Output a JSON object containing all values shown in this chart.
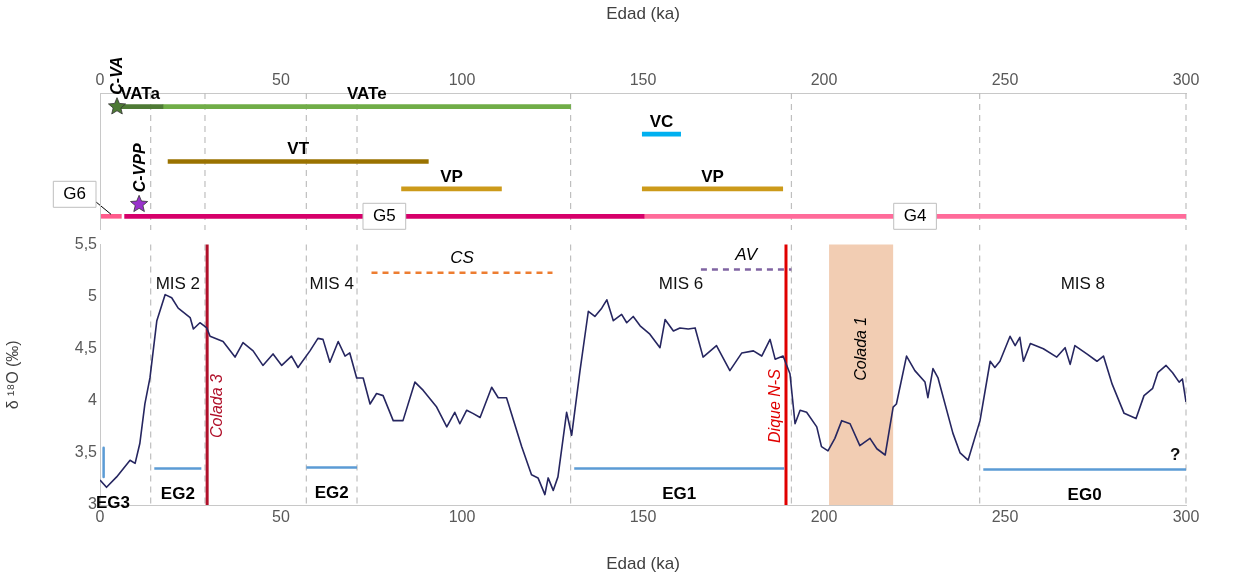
{
  "chart_data": [
    {
      "type": "bar",
      "orientation": "horizontal",
      "categories": [
        null,
        null,
        null,
        null,
        null
      ],
      "xlabel": "Edad (ka)",
      "xlim": [
        0,
        300
      ],
      "xticks": [
        0,
        50,
        100,
        150,
        200,
        250,
        300
      ],
      "tick_labels": "x",
      "grid": false,
      "legend": false,
      "series": [
        {
          "name": "VATa",
          "color": "#4e7a35",
          "base": [
            4.7,
            null,
            null,
            null,
            null
          ],
          "values": [
            12.7,
            null,
            null,
            null,
            null
          ]
        },
        {
          "name": "VATe",
          "color": "#70ad47",
          "base": [
            17.4,
            null,
            null,
            null,
            null
          ],
          "values": [
            112.6,
            null,
            null,
            null,
            null
          ]
        },
        {
          "name": "VC",
          "color": "#00b0f0",
          "base": [
            null,
            149.8,
            null,
            null,
            null
          ],
          "values": [
            null,
            10.6,
            null,
            null,
            null
          ]
        },
        {
          "name": "VT",
          "color": "#9a7200",
          "base": [
            null,
            null,
            18.8,
            null,
            null
          ],
          "values": [
            null,
            null,
            71.9,
            null,
            null
          ]
        },
        {
          "name": "VP",
          "color": "#cc9a1a",
          "base": [
            null,
            null,
            null,
            83.3,
            null
          ],
          "values": [
            null,
            null,
            null,
            27.6,
            null
          ]
        },
        {
          "name": "VP",
          "color": "#cc9a1a",
          "base": [
            null,
            null,
            null,
            149.8,
            null
          ],
          "values": [
            null,
            null,
            null,
            38.8,
            null
          ]
        },
        {
          "name": "G6",
          "color": "#ff5b8c",
          "base": [
            null,
            null,
            null,
            null,
            0.2
          ],
          "values": [
            null,
            null,
            null,
            null,
            5.7
          ]
        },
        {
          "name": "G5",
          "color": "#d6006a",
          "base": [
            null,
            null,
            null,
            null,
            6.8
          ],
          "values": [
            null,
            null,
            null,
            null,
            143.5
          ]
        },
        {
          "name": "G4",
          "color": "#ff6b9a",
          "base": [
            null,
            null,
            null,
            null,
            150.3
          ],
          "values": [
            null,
            null,
            null,
            null,
            149.7
          ]
        },
        {
          "type": "scatter",
          "marker": "star",
          "name": "C-VA",
          "color": "#4e7a35",
          "values": [
            4.7,
            null,
            null,
            null,
            null
          ]
        },
        {
          "type": "scatter",
          "marker": "star",
          "name": "C-VPP",
          "color": "#9933cc",
          "values": [
            null,
            null,
            null,
            null,
            10.8
          ]
        }
      ],
      "ref_lines": [
        {
          "axis": "x",
          "value": 14,
          "color": "#bfbfbf",
          "line_style": "dashed"
        },
        {
          "axis": "x",
          "value": 29,
          "color": "#bfbfbf",
          "line_style": "dashed"
        },
        {
          "axis": "x",
          "value": 57,
          "color": "#bfbfbf",
          "line_style": "dashed"
        },
        {
          "axis": "x",
          "value": 71,
          "color": "#bfbfbf",
          "line_style": "dashed"
        },
        {
          "axis": "x",
          "value": 130,
          "color": "#bfbfbf",
          "line_style": "dashed"
        },
        {
          "axis": "x",
          "value": 191,
          "color": "#bfbfbf",
          "line_style": "dashed"
        },
        {
          "axis": "x",
          "value": 243,
          "color": "#bfbfbf",
          "line_style": "dashed"
        },
        {
          "axis": "x",
          "value": 300,
          "color": "#bfbfbf",
          "line_style": "dashed"
        }
      ]
    },
    {
      "type": "line",
      "xlabel": "Edad (ka)",
      "ylabel": "δ ¹⁸O (‰)",
      "xlim": [
        0,
        300
      ],
      "xticks": [
        0,
        50,
        100,
        150,
        200,
        250,
        300
      ],
      "ylim": [
        3,
        5.5
      ],
      "yticks": [
        3,
        {
          "value": 3.5,
          "label": "3,5"
        },
        4,
        {
          "value": 4.5,
          "label": "4,5"
        },
        5,
        {
          "value": 5.5,
          "label": "5,5"
        }
      ],
      "grid": false,
      "legend": false,
      "marker": "none",
      "series": [
        {
          "color": "#262660",
          "x": [
            0,
            1.8,
            4.6,
            8.3,
            9.7,
            11,
            12.4,
            13.8,
            15.7,
            18,
            19.8,
            21.6,
            24.9,
            25.8,
            27.6,
            29.5,
            30.4,
            34,
            37.3,
            39.5,
            42.3,
            45,
            47.8,
            50.2,
            52.9,
            54.7,
            58,
            60.2,
            61.6,
            63.5,
            65.8,
            67.7,
            69,
            70.9,
            72.7,
            74.6,
            76.4,
            78.2,
            81,
            83.7,
            87,
            89.3,
            93,
            95.8,
            98,
            99.4,
            101.3,
            103,
            105,
            108.2,
            110,
            112.3,
            116.5,
            119.2,
            121,
            122.9,
            123.8,
            125.2,
            126.5,
            128.9,
            130.3,
            132.6,
            134.9,
            136.7,
            138.6,
            140,
            141.8,
            144.1,
            145.5,
            147.3,
            149.2,
            151.9,
            154.7,
            156.1,
            158.4,
            160.2,
            162.5,
            164.4,
            166.6,
            170.3,
            174,
            177.3,
            180.5,
            182.8,
            185.1,
            186.5,
            188.7,
            190.6,
            192,
            193.4,
            195.2,
            198,
            199.3,
            201.1,
            203,
            204.9,
            207.2,
            209.9,
            212.7,
            214.6,
            216.9,
            219.1,
            220,
            222.8,
            225.1,
            227.9,
            228.7,
            230.1,
            231.5,
            235.6,
            237.6,
            239.8,
            243.1,
            245.9,
            247.2,
            248.6,
            251.4,
            252.8,
            254.1,
            255.1,
            257,
            260.6,
            264.3,
            266.6,
            268,
            269.3,
            272.6,
            275.4,
            277.2,
            279.6,
            282.9,
            286.2,
            288.4,
            290.8,
            292.2,
            294.5,
            296.3,
            298.1,
            299,
            300
          ],
          "values": [
            3.24,
            3.17,
            3.27,
            3.43,
            3.4,
            3.59,
            3.97,
            4.22,
            4.77,
            5.02,
            4.99,
            4.89,
            4.8,
            4.69,
            4.75,
            4.7,
            4.62,
            4.57,
            4.42,
            4.56,
            4.48,
            4.34,
            4.45,
            4.34,
            4.43,
            4.32,
            4.48,
            4.6,
            4.59,
            4.37,
            4.57,
            4.43,
            4.46,
            4.22,
            4.22,
            3.97,
            4.07,
            4.05,
            3.81,
            3.81,
            4.18,
            4.1,
            3.94,
            3.75,
            3.89,
            3.78,
            3.91,
            3.88,
            3.84,
            4.13,
            4.03,
            4.03,
            3.56,
            3.29,
            3.26,
            3.1,
            3.26,
            3.14,
            3.27,
            3.89,
            3.67,
            4.29,
            4.86,
            4.81,
            4.89,
            4.97,
            4.77,
            4.83,
            4.75,
            4.81,
            4.72,
            4.64,
            4.51,
            4.78,
            4.67,
            4.7,
            4.69,
            4.7,
            4.42,
            4.53,
            4.29,
            4.46,
            4.48,
            4.43,
            4.59,
            4.4,
            4.43,
            4.26,
            3.78,
            3.91,
            3.89,
            3.75,
            3.56,
            3.52,
            3.64,
            3.81,
            3.78,
            3.57,
            3.64,
            3.54,
            3.48,
            3.94,
            3.97,
            4.43,
            4.29,
            4.18,
            4.03,
            4.31,
            4.22,
            3.69,
            3.5,
            3.43,
            3.81,
            4.38,
            4.32,
            4.38,
            4.62,
            4.53,
            4.61,
            4.38,
            4.55,
            4.5,
            4.42,
            4.51,
            4.35,
            4.53,
            4.45,
            4.38,
            4.43,
            4.16,
            3.88,
            3.83,
            4.05,
            4.12,
            4.27,
            4.34,
            4.27,
            4.18,
            4.21,
            3.99
          ]
        },
        {
          "name": "EG3",
          "color": "#5b9bd5",
          "x": [
            1,
            1
          ],
          "values": [
            3.55,
            3.27
          ]
        },
        {
          "name": "EG2",
          "color": "#5b9bd5",
          "x": [
            15,
            28
          ],
          "values": [
            3.35,
            3.35
          ]
        },
        {
          "name": "EG2",
          "color": "#5b9bd5",
          "x": [
            57,
            71
          ],
          "values": [
            3.36,
            3.36
          ]
        },
        {
          "name": "EG1",
          "color": "#5b9bd5",
          "x": [
            131,
            189
          ],
          "values": [
            3.35,
            3.35
          ]
        },
        {
          "name": "EG0",
          "color": "#5b9bd5",
          "x": [
            244,
            300
          ],
          "values": [
            3.34,
            3.34
          ]
        },
        {
          "name": "CS",
          "color": "#ed7d31",
          "line_style": "dashed",
          "x": [
            75,
            125
          ],
          "values": [
            5.23,
            5.23
          ]
        },
        {
          "name": "AV",
          "color": "#8064a2",
          "line_style": "dashed",
          "x": [
            166,
            191
          ],
          "values": [
            5.26,
            5.26
          ]
        }
      ],
      "ref_lines": [
        {
          "axis": "x",
          "value": 14,
          "color": "#bfbfbf",
          "line_style": "dashed"
        },
        {
          "axis": "x",
          "value": 29,
          "color": "#bfbfbf",
          "line_style": "dashed"
        },
        {
          "axis": "x",
          "value": 57,
          "color": "#bfbfbf",
          "line_style": "dashed"
        },
        {
          "axis": "x",
          "value": 71,
          "color": "#bfbfbf",
          "line_style": "dashed"
        },
        {
          "axis": "x",
          "value": 130,
          "color": "#bfbfbf",
          "line_style": "dashed"
        },
        {
          "axis": "x",
          "value": 191,
          "color": "#bfbfbf",
          "line_style": "dashed"
        },
        {
          "axis": "x",
          "value": 243,
          "color": "#bfbfbf",
          "line_style": "dashed"
        },
        {
          "axis": "x",
          "value": 300,
          "color": "#bfbfbf",
          "line_style": "dashed"
        },
        {
          "axis": "x",
          "value": 29.6,
          "label": "Colada 3",
          "color": "#b0102a"
        },
        {
          "axis": "x",
          "value": 189.5,
          "label": "Dique N-S",
          "color": "#e00000"
        }
      ],
      "bands": [
        {
          "axis": "x",
          "from": 201.4,
          "to": 219.1,
          "label": "Colada 1",
          "color": "#f2cdb3"
        }
      ],
      "annotations": [
        "MIS 2",
        "MIS 4",
        "MIS 6",
        "MIS 8",
        {
          "text": "?",
          "x": 300,
          "y": 3.34
        }
      ]
    }
  ]
}
